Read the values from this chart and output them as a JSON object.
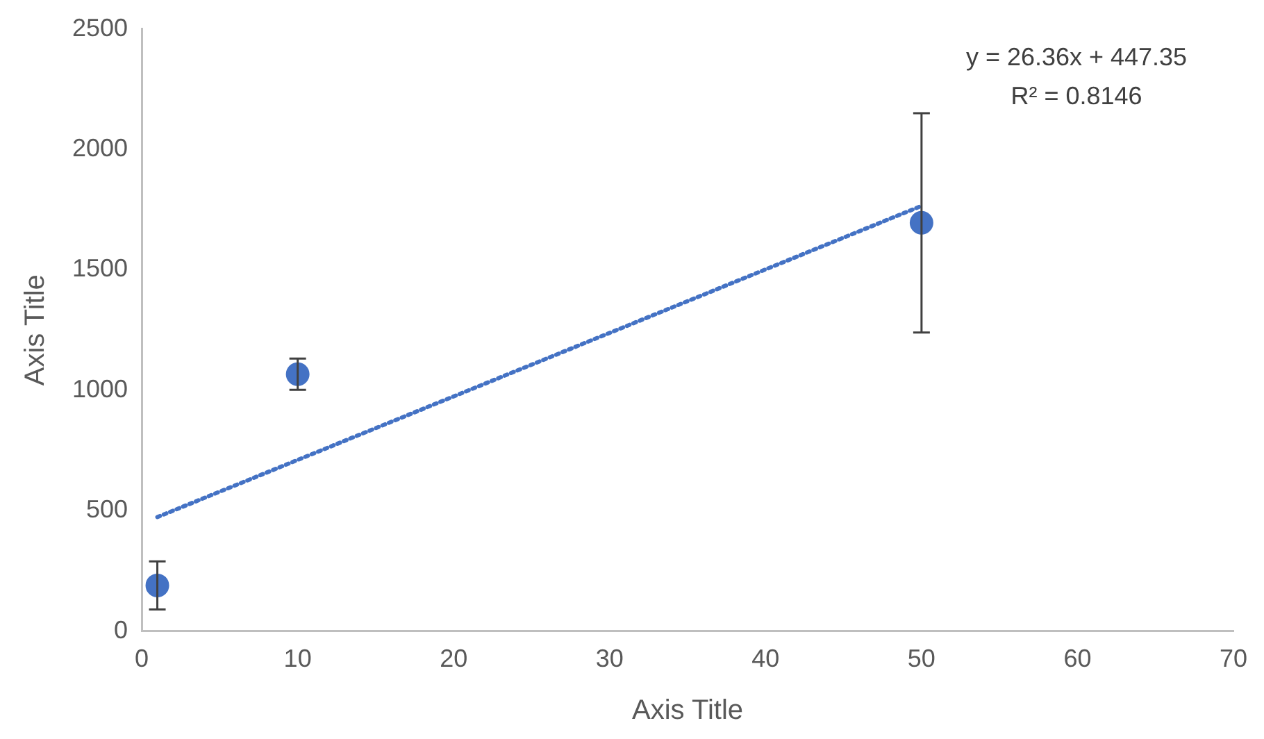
{
  "chart_data": {
    "type": "scatter",
    "xlabel": "Axis Title",
    "ylabel": "Axis Title",
    "xlim": [
      0,
      70
    ],
    "xticks": [
      0,
      10,
      20,
      30,
      40,
      50,
      60,
      70
    ],
    "ylim": [
      0,
      2500
    ],
    "yticks": [
      0,
      500,
      1000,
      1500,
      2000,
      2500
    ],
    "grid": false,
    "legend": false,
    "marker": "circle",
    "series": [
      {
        "color": "#4472c4",
        "x": [
          1,
          10,
          50
        ],
        "values": [
          190,
          1067,
          1695
        ],
        "errors": [
          100,
          65,
          455
        ]
      },
      {
        "type": "line",
        "color": "#4472c4",
        "x": [
          1,
          50
        ],
        "values": [
          473.71,
          1765.35
        ],
        "line_style": "dotted",
        "marker": "none"
      }
    ],
    "annotations": [
      "y = 26.36x + 447.35",
      "R² = 0.8146"
    ]
  }
}
